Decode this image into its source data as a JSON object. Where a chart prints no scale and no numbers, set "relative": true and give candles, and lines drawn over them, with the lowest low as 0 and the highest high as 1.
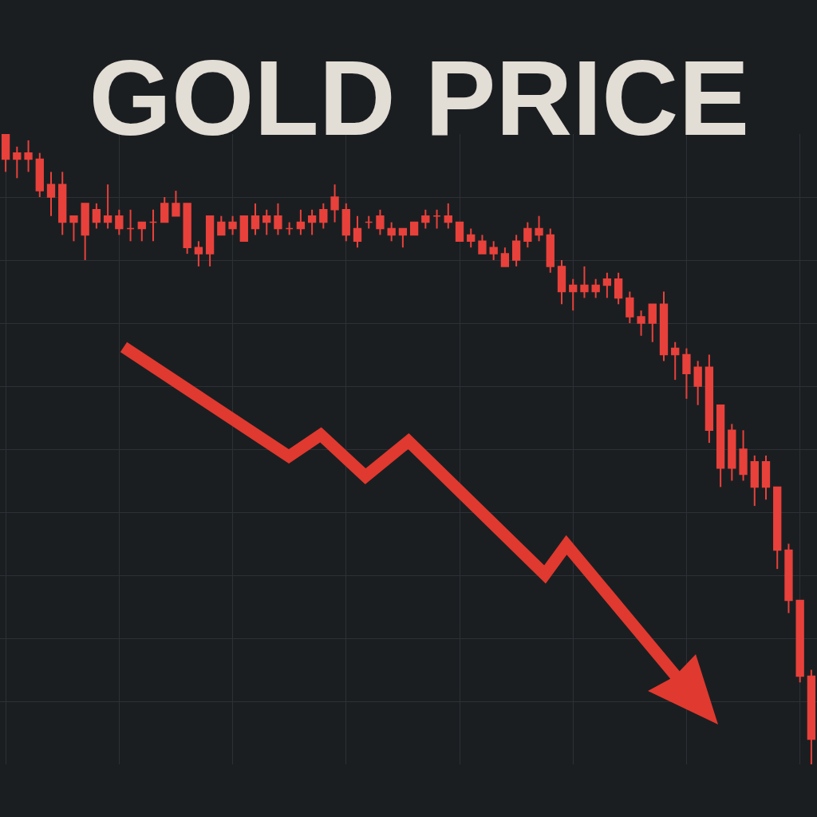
{
  "chart_data": {
    "type": "candlestick",
    "title": "GOLD PRICE",
    "relative": true,
    "color": "#e8413b",
    "grid": true,
    "tick_labels": false,
    "categories": [
      null,
      null,
      null,
      null,
      null,
      null,
      null,
      null,
      null,
      null,
      null,
      null,
      null,
      null,
      null,
      null,
      null,
      null,
      null,
      null,
      null,
      null,
      null,
      null,
      null,
      null,
      null,
      null,
      null,
      null,
      null,
      null,
      null,
      null,
      null,
      null,
      null,
      null,
      null,
      null,
      null,
      null,
      null,
      null,
      null,
      null,
      null,
      null,
      null,
      null,
      null,
      null,
      null,
      null,
      null,
      null,
      null,
      null,
      null,
      null,
      null,
      null,
      null,
      null,
      null,
      null,
      null,
      null,
      null,
      null,
      null,
      null
    ],
    "ohlc": [
      [
        1.0,
        1.0,
        0.94,
        0.96
      ],
      [
        0.97,
        0.98,
        0.93,
        0.96
      ],
      [
        0.97,
        0.99,
        0.94,
        0.96
      ],
      [
        0.96,
        0.97,
        0.9,
        0.91
      ],
      [
        0.92,
        0.94,
        0.87,
        0.9
      ],
      [
        0.92,
        0.94,
        0.84,
        0.86
      ],
      [
        0.87,
        0.87,
        0.83,
        0.86
      ],
      [
        0.89,
        0.89,
        0.8,
        0.84
      ],
      [
        0.88,
        0.89,
        0.85,
        0.86
      ],
      [
        0.87,
        0.92,
        0.85,
        0.86
      ],
      [
        0.87,
        0.88,
        0.84,
        0.85
      ],
      [
        0.85,
        0.88,
        0.83,
        0.85
      ],
      [
        0.86,
        0.86,
        0.83,
        0.85
      ],
      [
        0.86,
        0.88,
        0.83,
        0.86
      ],
      [
        0.89,
        0.9,
        0.86,
        0.86
      ],
      [
        0.89,
        0.91,
        0.87,
        0.87
      ],
      [
        0.89,
        0.89,
        0.81,
        0.82
      ],
      [
        0.82,
        0.83,
        0.79,
        0.81
      ],
      [
        0.87,
        0.87,
        0.79,
        0.81
      ],
      [
        0.86,
        0.87,
        0.84,
        0.84
      ],
      [
        0.86,
        0.87,
        0.84,
        0.85
      ],
      [
        0.87,
        0.87,
        0.83,
        0.83
      ],
      [
        0.87,
        0.89,
        0.84,
        0.85
      ],
      [
        0.87,
        0.88,
        0.84,
        0.86
      ],
      [
        0.87,
        0.89,
        0.84,
        0.85
      ],
      [
        0.85,
        0.86,
        0.84,
        0.85
      ],
      [
        0.86,
        0.88,
        0.84,
        0.85
      ],
      [
        0.87,
        0.88,
        0.84,
        0.86
      ],
      [
        0.88,
        0.89,
        0.85,
        0.86
      ],
      [
        0.9,
        0.92,
        0.86,
        0.88
      ],
      [
        0.88,
        0.89,
        0.83,
        0.84
      ],
      [
        0.85,
        0.87,
        0.82,
        0.83
      ],
      [
        0.86,
        0.87,
        0.85,
        0.86
      ],
      [
        0.87,
        0.88,
        0.84,
        0.85
      ],
      [
        0.85,
        0.86,
        0.83,
        0.84
      ],
      [
        0.85,
        0.85,
        0.82,
        0.84
      ],
      [
        0.86,
        0.86,
        0.84,
        0.84
      ],
      [
        0.87,
        0.88,
        0.85,
        0.86
      ],
      [
        0.87,
        0.88,
        0.85,
        0.87
      ],
      [
        0.87,
        0.89,
        0.85,
        0.86
      ],
      [
        0.86,
        0.86,
        0.83,
        0.83
      ],
      [
        0.84,
        0.85,
        0.82,
        0.83
      ],
      [
        0.83,
        0.84,
        0.81,
        0.81
      ],
      [
        0.82,
        0.83,
        0.8,
        0.81
      ],
      [
        0.81,
        0.82,
        0.79,
        0.79
      ],
      [
        0.83,
        0.84,
        0.79,
        0.8
      ],
      [
        0.85,
        0.86,
        0.82,
        0.83
      ],
      [
        0.85,
        0.87,
        0.83,
        0.84
      ],
      [
        0.84,
        0.85,
        0.78,
        0.79
      ],
      [
        0.79,
        0.8,
        0.73,
        0.75
      ],
      [
        0.76,
        0.77,
        0.72,
        0.75
      ],
      [
        0.76,
        0.79,
        0.74,
        0.75
      ],
      [
        0.76,
        0.77,
        0.74,
        0.75
      ],
      [
        0.77,
        0.78,
        0.74,
        0.76
      ],
      [
        0.77,
        0.78,
        0.73,
        0.74
      ],
      [
        0.74,
        0.75,
        0.7,
        0.71
      ],
      [
        0.71,
        0.72,
        0.68,
        0.7
      ],
      [
        0.73,
        0.73,
        0.67,
        0.7
      ],
      [
        0.73,
        0.75,
        0.64,
        0.65
      ],
      [
        0.66,
        0.67,
        0.61,
        0.65
      ],
      [
        0.65,
        0.66,
        0.58,
        0.62
      ],
      [
        0.63,
        0.64,
        0.57,
        0.6
      ],
      [
        0.63,
        0.65,
        0.51,
        0.53
      ],
      [
        0.57,
        0.57,
        0.44,
        0.47
      ],
      [
        0.53,
        0.54,
        0.45,
        0.47
      ],
      [
        0.5,
        0.53,
        0.45,
        0.46
      ],
      [
        0.48,
        0.49,
        0.41,
        0.44
      ],
      [
        0.48,
        0.49,
        0.42,
        0.44
      ],
      [
        0.44,
        0.44,
        0.31,
        0.34
      ],
      [
        0.34,
        0.35,
        0.24,
        0.26
      ],
      [
        0.26,
        0.26,
        0.13,
        0.14
      ],
      [
        0.14,
        0.15,
        0.0,
        0.04
      ]
    ]
  }
}
